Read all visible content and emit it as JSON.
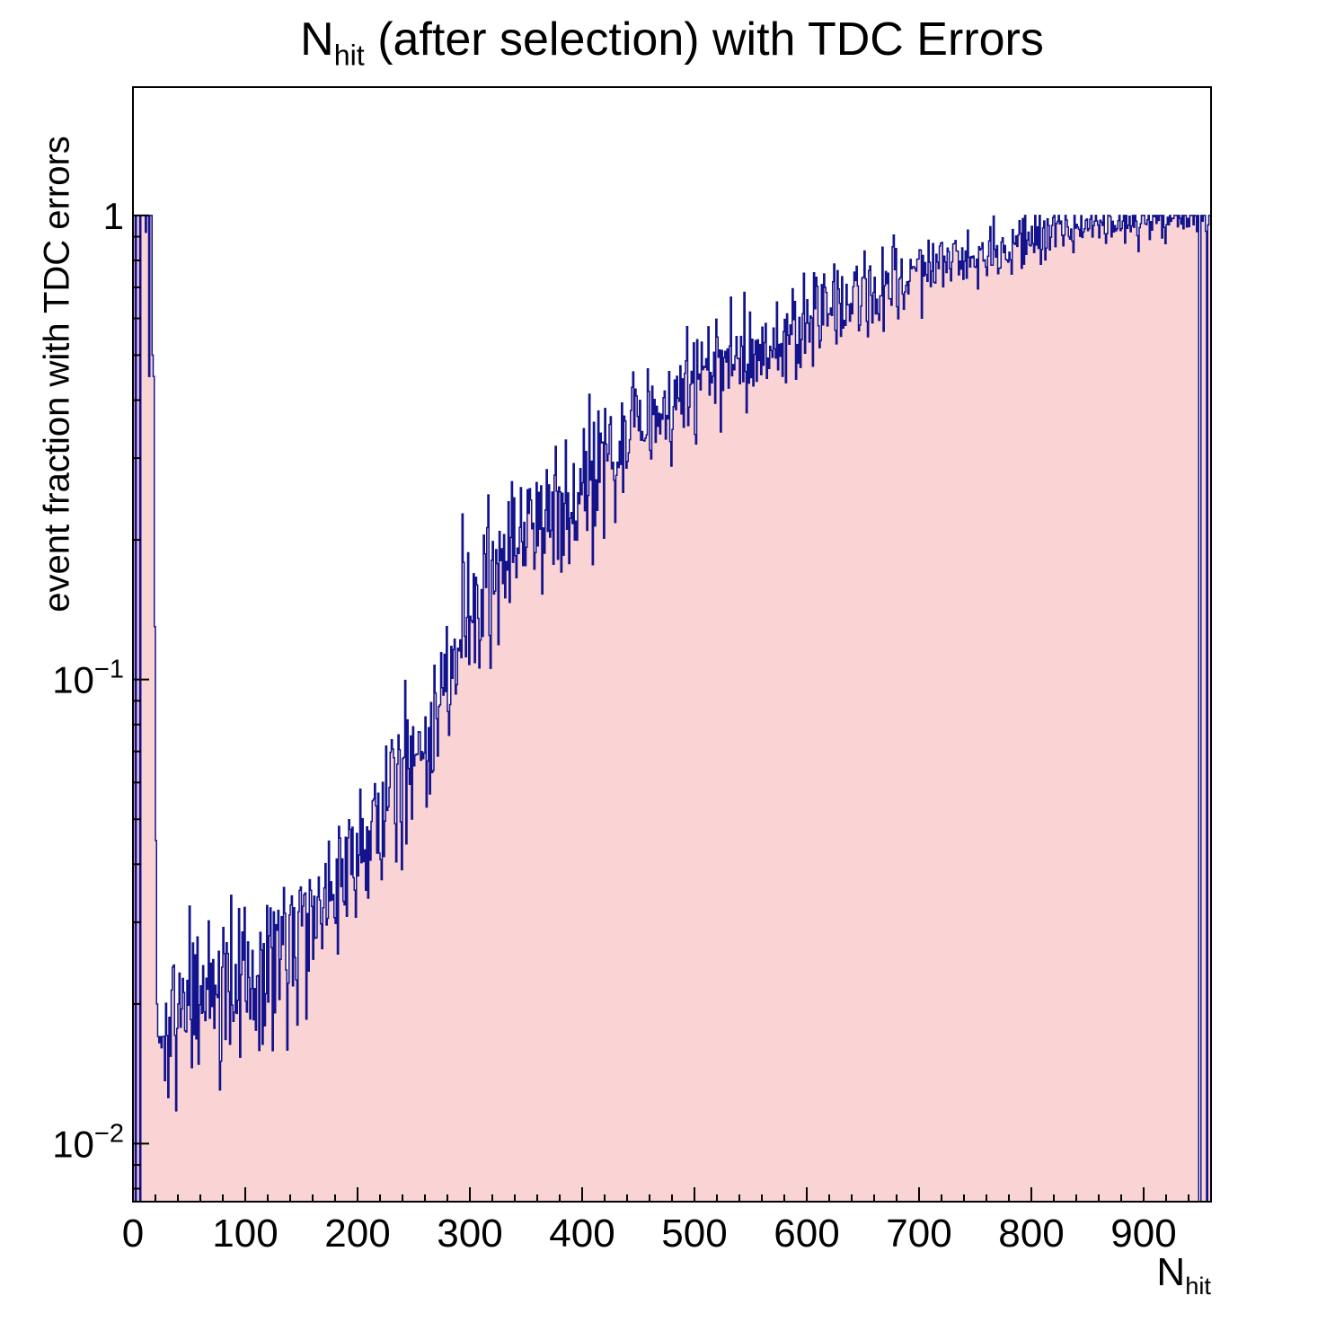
{
  "title": {
    "prefix": "N",
    "sub": "hit",
    "rest": " (after selection) with TDC Errors"
  },
  "y_axis": {
    "title": "event fraction with TDC errors",
    "ticks": [
      {
        "label": "1",
        "value": 1
      },
      {
        "base": "10",
        "exp": "−1",
        "value": 0.1
      },
      {
        "base": "10",
        "exp": "−2",
        "value": 0.01
      }
    ]
  },
  "x_axis": {
    "title_prefix": "N",
    "title_sub": "hit",
    "ticks": [
      0,
      100,
      200,
      300,
      400,
      500,
      600,
      700,
      800,
      900
    ],
    "minor_step": 20,
    "min": 0,
    "max": 960
  },
  "chart_data": {
    "type": "bar",
    "style": "histogram-step-filled",
    "title": "N_hit (after selection) with TDC Errors",
    "xlabel": "N_hit",
    "ylabel": "event fraction with TDC errors",
    "x_range": [
      0,
      960
    ],
    "y_range": [
      0.0075,
      1.89
    ],
    "y_scale": "log",
    "n_bins": 960,
    "colors": {
      "fill": "#fad3d4",
      "line": "#13138d",
      "frame": "#000000",
      "text": "#000000"
    },
    "left_region_bins": [
      [
        0,
        1
      ],
      [
        1,
        1
      ],
      [
        2,
        0
      ],
      [
        3,
        1
      ],
      [
        4,
        1
      ],
      [
        5,
        1
      ],
      [
        6,
        0
      ],
      [
        7,
        1
      ],
      [
        8,
        1
      ],
      [
        9,
        1
      ],
      [
        10,
        1
      ],
      [
        11,
        0.92
      ],
      [
        12,
        1
      ],
      [
        13,
        1
      ],
      [
        14,
        0.45
      ],
      [
        15,
        1
      ],
      [
        16,
        1
      ],
      [
        17,
        0.5
      ],
      [
        18,
        0.45
      ],
      [
        19,
        0.13
      ],
      [
        20,
        0.045
      ],
      [
        21,
        0.02
      ],
      [
        22,
        0.017
      ],
      [
        23,
        0.0165
      ],
      [
        24,
        0.017
      ]
    ],
    "right_gap_bins": [
      949,
      950,
      956
    ],
    "anchors": [
      [
        25,
        0.0165
      ],
      [
        40,
        0.0185
      ],
      [
        60,
        0.02
      ],
      [
        80,
        0.0205
      ],
      [
        100,
        0.022
      ],
      [
        120,
        0.0245
      ],
      [
        140,
        0.028
      ],
      [
        160,
        0.0325
      ],
      [
        180,
        0.036
      ],
      [
        200,
        0.04
      ],
      [
        220,
        0.05
      ],
      [
        240,
        0.062
      ],
      [
        260,
        0.08
      ],
      [
        280,
        0.105
      ],
      [
        300,
        0.14
      ],
      [
        320,
        0.165
      ],
      [
        340,
        0.19
      ],
      [
        360,
        0.215
      ],
      [
        380,
        0.24
      ],
      [
        400,
        0.26
      ],
      [
        420,
        0.29
      ],
      [
        440,
        0.325
      ],
      [
        460,
        0.36
      ],
      [
        480,
        0.395
      ],
      [
        500,
        0.43
      ],
      [
        520,
        0.46
      ],
      [
        540,
        0.49
      ],
      [
        560,
        0.52
      ],
      [
        580,
        0.55
      ],
      [
        600,
        0.58
      ],
      [
        620,
        0.615
      ],
      [
        640,
        0.65
      ],
      [
        660,
        0.685
      ],
      [
        680,
        0.72
      ],
      [
        700,
        0.755
      ],
      [
        720,
        0.785
      ],
      [
        740,
        0.815
      ],
      [
        760,
        0.845
      ],
      [
        780,
        0.875
      ],
      [
        800,
        0.9
      ],
      [
        820,
        0.92
      ],
      [
        840,
        0.94
      ],
      [
        860,
        0.955
      ],
      [
        880,
        0.97
      ],
      [
        900,
        0.985
      ],
      [
        920,
        0.995
      ],
      [
        940,
        1.0
      ],
      [
        959,
        1.0
      ]
    ],
    "noise": {
      "base": 0.05,
      "scale": 0.16
    }
  }
}
